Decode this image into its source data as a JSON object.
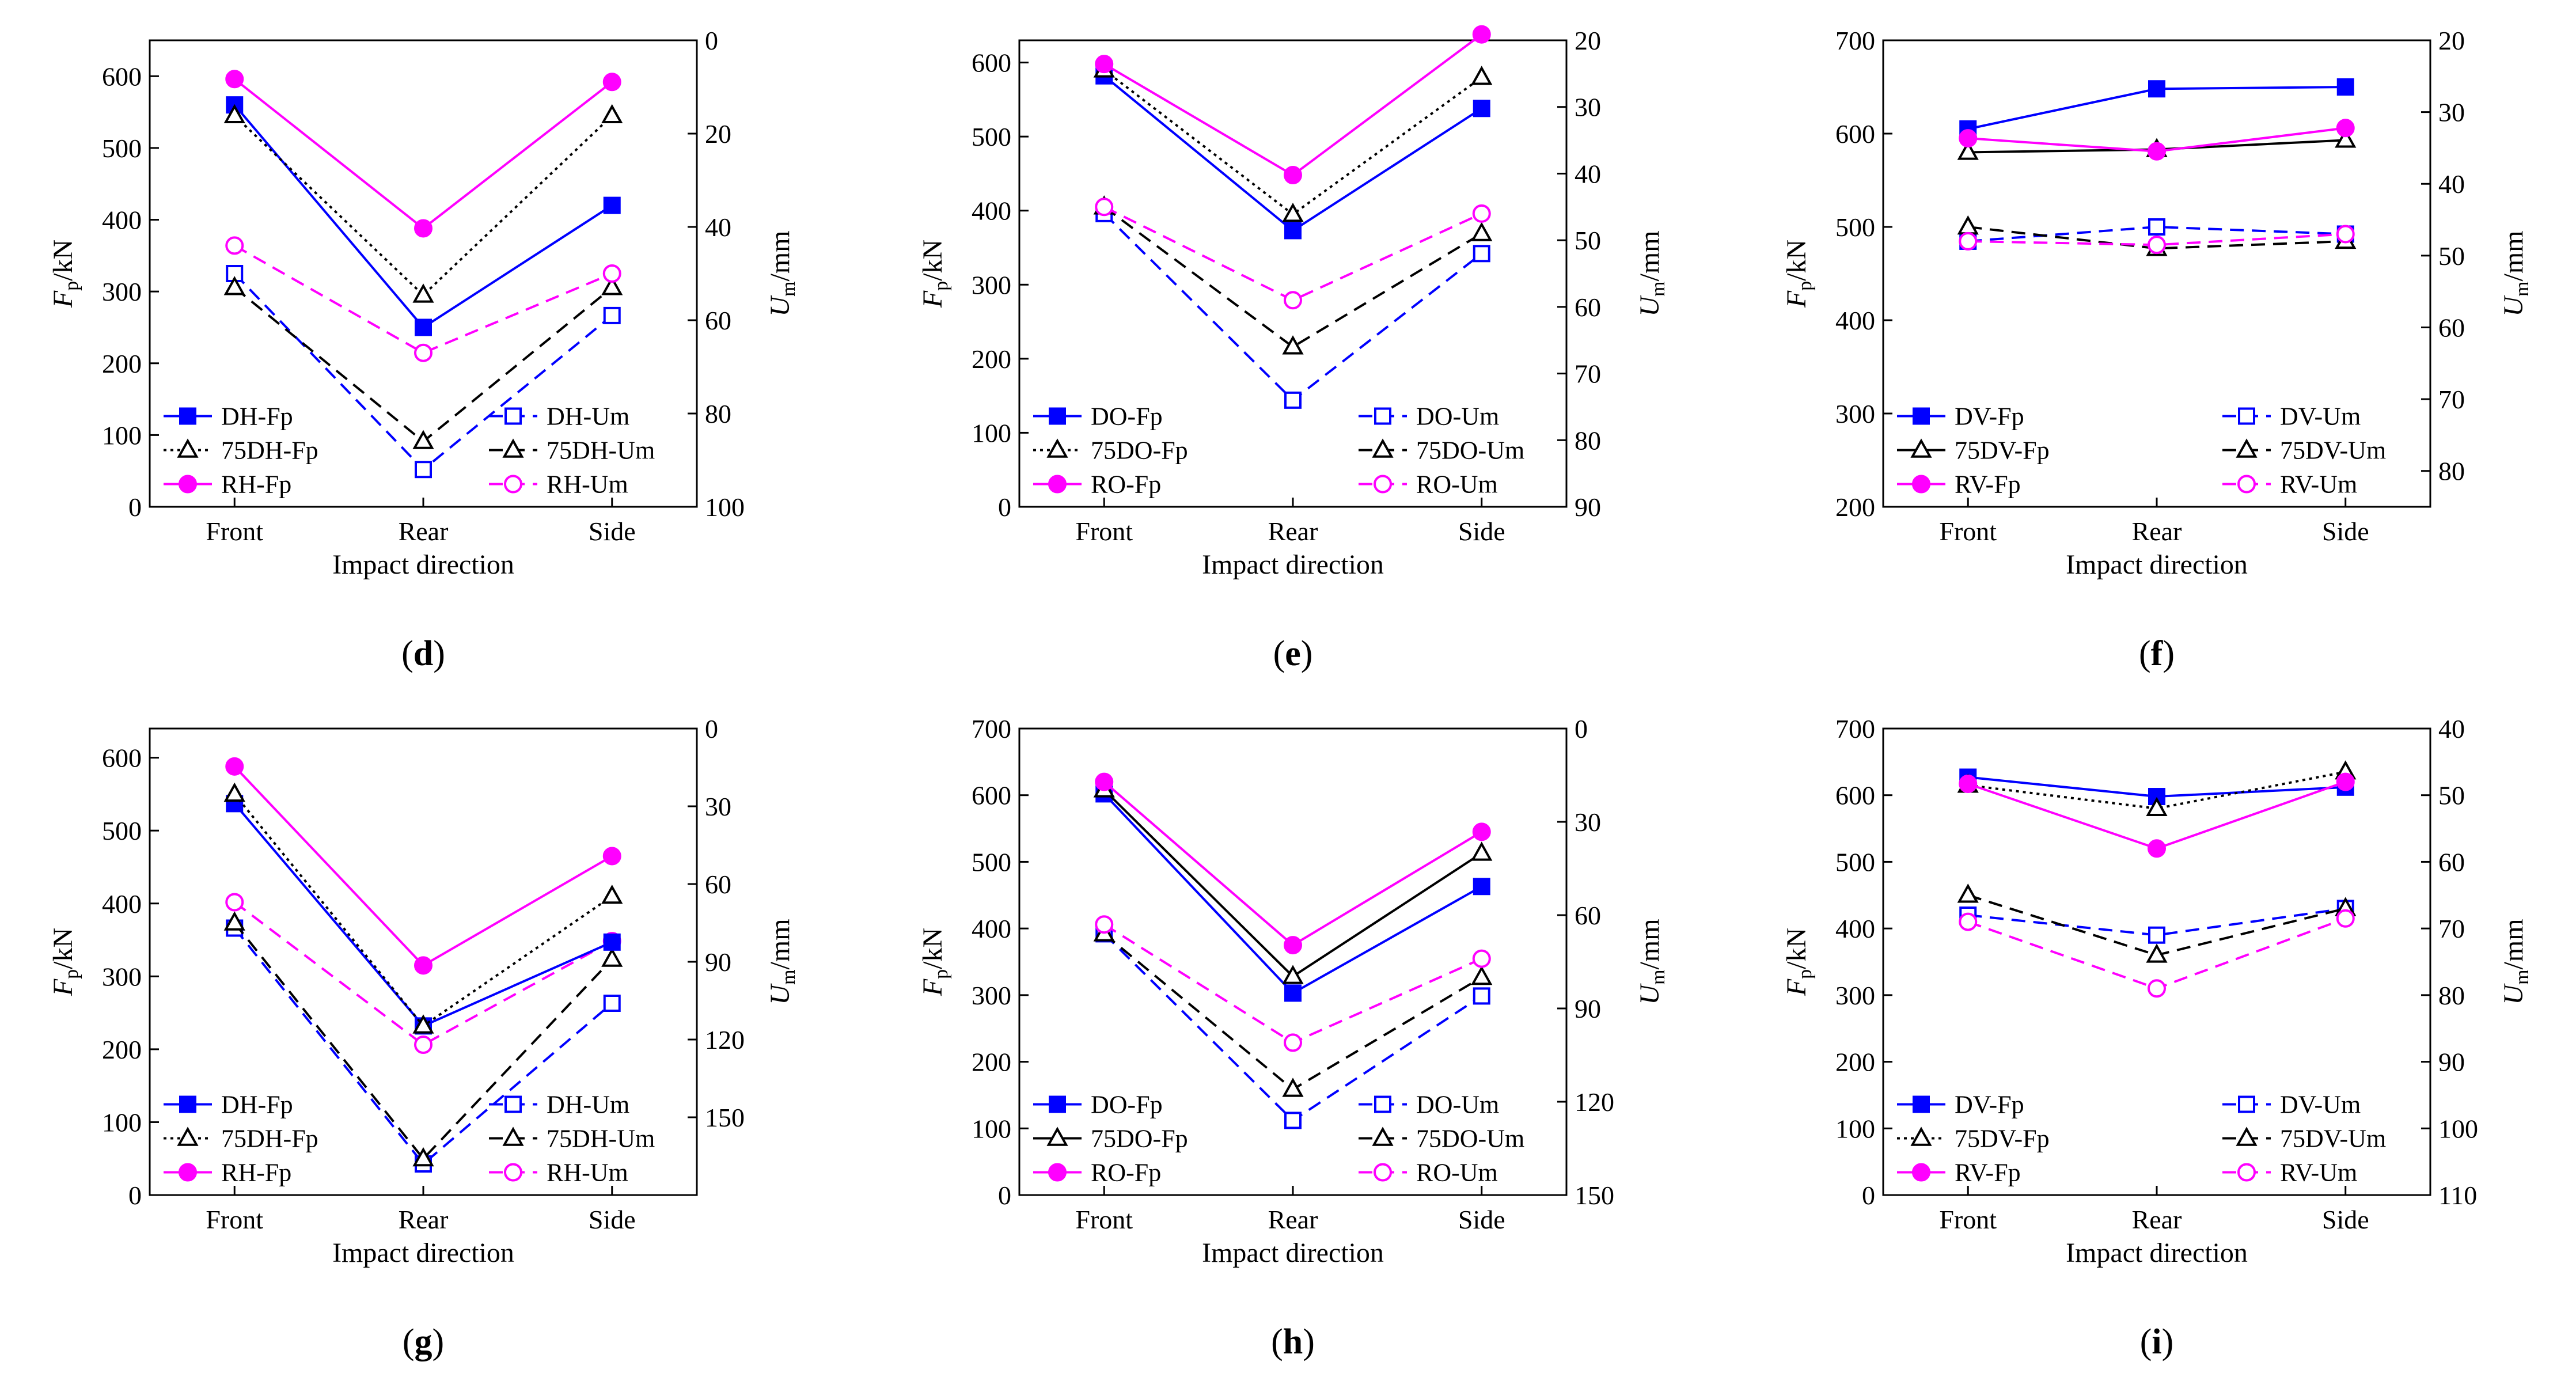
{
  "figure": {
    "panels": [
      {
        "id": "d",
        "label_letter": "d",
        "label_text": "(d)"
      },
      {
        "id": "e",
        "label_letter": "e",
        "label_text": "(e)"
      },
      {
        "id": "f",
        "label_letter": "f",
        "label_text": "(f)"
      },
      {
        "id": "g",
        "label_letter": "g",
        "label_text": "(g)"
      },
      {
        "id": "h",
        "label_letter": "h",
        "label_text": "(h)"
      },
      {
        "id": "i",
        "label_letter": "i",
        "label_text": "(i)"
      }
    ]
  },
  "chart_data": [
    {
      "panel": "d",
      "type": "line",
      "categories": [
        "Front",
        "Rear",
        "Side"
      ],
      "xlabel": "Impact direction",
      "ylabel_left": {
        "main": "F",
        "sub": "p",
        "unit": "/kN"
      },
      "ylabel_right": {
        "main": "U",
        "sub": "m",
        "unit": "/mm"
      },
      "ylim_left": [
        0,
        650
      ],
      "yticks_left": [
        0,
        100,
        200,
        300,
        400,
        500,
        600
      ],
      "ylim_right": [
        0,
        100
      ],
      "ylim_right_display": [
        100,
        0
      ],
      "yticks_right": [
        0,
        20,
        40,
        60,
        80,
        100
      ],
      "right_axis_inverted": true,
      "legend_left_placement": "lower-left",
      "legend_right_placement": "lower-right",
      "series": [
        {
          "name": "DH-Fp",
          "axis": "left",
          "color": "#0000ff",
          "marker": "square-filled",
          "line": "solid",
          "values": [
            560,
            250,
            420
          ]
        },
        {
          "name": "75DH-Fp",
          "axis": "left",
          "color": "#000000",
          "marker": "triangle-hollow",
          "line": "dotted",
          "values": [
            545,
            295,
            545
          ]
        },
        {
          "name": "RH-Fp",
          "axis": "left",
          "color": "#ff00ff",
          "marker": "circle-filled",
          "line": "solid",
          "values": [
            596,
            388,
            592
          ]
        },
        {
          "name": "DH-Um",
          "axis": "right",
          "color": "#0000ff",
          "marker": "square-hollow",
          "line": "dashed",
          "values": [
            50,
            92,
            59
          ]
        },
        {
          "name": "75DH-Um",
          "axis": "right",
          "color": "#000000",
          "marker": "triangle-hollow",
          "line": "dashed",
          "values": [
            53,
            86,
            53
          ]
        },
        {
          "name": "RH-Um",
          "axis": "right",
          "color": "#ff00ff",
          "marker": "circle-hollow",
          "line": "dashed",
          "values": [
            44,
            67,
            50
          ]
        }
      ]
    },
    {
      "panel": "e",
      "type": "line",
      "categories": [
        "Front",
        "Rear",
        "Side"
      ],
      "xlabel": "Impact direction",
      "ylabel_left": {
        "main": "F",
        "sub": "p",
        "unit": "/kN"
      },
      "ylabel_right": {
        "main": "U",
        "sub": "m",
        "unit": "/mm"
      },
      "ylim_left": [
        0,
        630
      ],
      "yticks_left": [
        0,
        100,
        200,
        300,
        400,
        500,
        600
      ],
      "ylim_right": [
        20,
        90
      ],
      "ylim_right_display": [
        90,
        20
      ],
      "yticks_right": [
        20,
        30,
        40,
        50,
        60,
        70,
        80,
        90
      ],
      "right_axis_inverted": true,
      "legend_left_placement": "lower-left",
      "legend_right_placement": "lower-right",
      "series": [
        {
          "name": "DO-Fp",
          "axis": "left",
          "color": "#0000ff",
          "marker": "square-filled",
          "line": "solid",
          "values": [
            582,
            373,
            538
          ]
        },
        {
          "name": "75DO-Fp",
          "axis": "left",
          "color": "#000000",
          "marker": "triangle-hollow",
          "line": "dotted",
          "values": [
            590,
            395,
            580
          ]
        },
        {
          "name": "RO-Fp",
          "axis": "left",
          "color": "#ff00ff",
          "marker": "circle-filled",
          "line": "solid",
          "values": [
            598,
            448,
            638
          ]
        },
        {
          "name": "DO-Um",
          "axis": "right",
          "color": "#0000ff",
          "marker": "square-hollow",
          "line": "dashed",
          "values": [
            46,
            74,
            52
          ]
        },
        {
          "name": "75DO-Um",
          "axis": "right",
          "color": "#000000",
          "marker": "triangle-hollow",
          "line": "dashed",
          "values": [
            45,
            66,
            49
          ]
        },
        {
          "name": "RO-Um",
          "axis": "right",
          "color": "#ff00ff",
          "marker": "circle-hollow",
          "line": "dashed",
          "values": [
            45,
            59,
            46
          ]
        }
      ]
    },
    {
      "panel": "f",
      "type": "line",
      "categories": [
        "Front",
        "Rear",
        "Side"
      ],
      "xlabel": "Impact direction",
      "ylabel_left": {
        "main": "F",
        "sub": "p",
        "unit": "/kN"
      },
      "ylabel_right": {
        "main": "U",
        "sub": "m",
        "unit": "/mm"
      },
      "ylim_left": [
        200,
        700
      ],
      "yticks_left": [
        200,
        300,
        400,
        500,
        600,
        700
      ],
      "ylim_right": [
        20,
        85
      ],
      "ylim_right_display": [
        85,
        20
      ],
      "yticks_right": [
        20,
        30,
        40,
        50,
        60,
        70,
        80
      ],
      "right_axis_inverted": true,
      "legend_left_placement": "lower-left",
      "legend_right_placement": "lower-right",
      "series": [
        {
          "name": "DV-Fp",
          "axis": "left",
          "color": "#0000ff",
          "marker": "square-filled",
          "line": "solid",
          "values": [
            605,
            648,
            650
          ]
        },
        {
          "name": "75DV-Fp",
          "axis": "left",
          "color": "#000000",
          "marker": "triangle-hollow",
          "line": "solid",
          "values": [
            580,
            583,
            593
          ]
        },
        {
          "name": "RV-Fp",
          "axis": "left",
          "color": "#ff00ff",
          "marker": "circle-filled",
          "line": "solid",
          "values": [
            595,
            581,
            606
          ]
        },
        {
          "name": "DV-Um",
          "axis": "right",
          "color": "#0000ff",
          "marker": "square-hollow",
          "line": "dashed",
          "values": [
            48,
            46,
            47
          ]
        },
        {
          "name": "75DV-Um",
          "axis": "right",
          "color": "#000000",
          "marker": "triangle-hollow",
          "line": "dashed",
          "values": [
            46,
            49,
            48
          ]
        },
        {
          "name": "RV-Um",
          "axis": "right",
          "color": "#ff00ff",
          "marker": "circle-hollow",
          "line": "dashed",
          "values": [
            48,
            48.5,
            47
          ]
        }
      ]
    },
    {
      "panel": "g",
      "type": "line",
      "categories": [
        "Front",
        "Rear",
        "Side"
      ],
      "xlabel": "Impact direction",
      "ylabel_left": {
        "main": "F",
        "sub": "p",
        "unit": "/kN"
      },
      "ylabel_right": {
        "main": "U",
        "sub": "m",
        "unit": "/mm"
      },
      "ylim_left": [
        0,
        640
      ],
      "yticks_left": [
        0,
        100,
        200,
        300,
        400,
        500,
        600
      ],
      "ylim_right": [
        0,
        180
      ],
      "ylim_right_display": [
        180,
        0
      ],
      "yticks_right": [
        0,
        30,
        60,
        90,
        120,
        150
      ],
      "right_axis_inverted": true,
      "legend_left_placement": "lower-left",
      "legend_right_placement": "lower-right",
      "series": [
        {
          "name": "DH-Fp",
          "axis": "left",
          "color": "#0000ff",
          "marker": "square-filled",
          "line": "solid",
          "values": [
            537,
            232,
            347
          ]
        },
        {
          "name": "75DH-Fp",
          "axis": "left",
          "color": "#000000",
          "marker": "triangle-hollow",
          "line": "dotted",
          "values": [
            550,
            232,
            410
          ]
        },
        {
          "name": "RH-Fp",
          "axis": "left",
          "color": "#ff00ff",
          "marker": "circle-filled",
          "line": "solid",
          "values": [
            588,
            315,
            465
          ]
        },
        {
          "name": "DH-Um",
          "axis": "right",
          "color": "#0000ff",
          "marker": "square-hollow",
          "line": "dashed",
          "values": [
            77,
            168,
            106
          ]
        },
        {
          "name": "75DH-Um",
          "axis": "right",
          "color": "#000000",
          "marker": "triangle-hollow",
          "line": "dashed",
          "values": [
            75,
            166,
            89
          ]
        },
        {
          "name": "RH-Um",
          "axis": "right",
          "color": "#ff00ff",
          "marker": "circle-hollow",
          "line": "dashed",
          "values": [
            67,
            122,
            82
          ]
        }
      ]
    },
    {
      "panel": "h",
      "type": "line",
      "categories": [
        "Front",
        "Rear",
        "Side"
      ],
      "xlabel": "Impact direction",
      "ylabel_left": {
        "main": "F",
        "sub": "p",
        "unit": "/kN"
      },
      "ylabel_right": {
        "main": "U",
        "sub": "m",
        "unit": "/mm"
      },
      "ylim_left": [
        0,
        700
      ],
      "yticks_left": [
        0,
        100,
        200,
        300,
        400,
        500,
        600,
        700
      ],
      "ylim_right": [
        0,
        150
      ],
      "ylim_right_display": [
        150,
        0
      ],
      "yticks_right": [
        0,
        30,
        60,
        90,
        120,
        150
      ],
      "right_axis_inverted": true,
      "legend_left_placement": "lower-left",
      "legend_right_placement": "lower-right",
      "series": [
        {
          "name": "DO-Fp",
          "axis": "left",
          "color": "#0000ff",
          "marker": "square-filled",
          "line": "solid",
          "values": [
            602,
            303,
            463
          ]
        },
        {
          "name": "75DO-Fp",
          "axis": "left",
          "color": "#000000",
          "marker": "triangle-hollow",
          "line": "solid",
          "values": [
            608,
            328,
            513
          ]
        },
        {
          "name": "RO-Fp",
          "axis": "left",
          "color": "#ff00ff",
          "marker": "circle-filled",
          "line": "solid",
          "values": [
            620,
            375,
            545
          ]
        },
        {
          "name": "DO-Um",
          "axis": "right",
          "color": "#0000ff",
          "marker": "square-hollow",
          "line": "dashed",
          "values": [
            66,
            126,
            86
          ]
        },
        {
          "name": "75DO-Um",
          "axis": "right",
          "color": "#000000",
          "marker": "triangle-hollow",
          "line": "dashed",
          "values": [
            66,
            116,
            80
          ]
        },
        {
          "name": "RO-Um",
          "axis": "right",
          "color": "#ff00ff",
          "marker": "circle-hollow",
          "line": "dashed",
          "values": [
            63,
            101,
            74
          ]
        }
      ]
    },
    {
      "panel": "i",
      "type": "line",
      "categories": [
        "Front",
        "Rear",
        "Side"
      ],
      "xlabel": "Impact direction",
      "ylabel_left": {
        "main": "F",
        "sub": "p",
        "unit": "/kN"
      },
      "ylabel_right": {
        "main": "U",
        "sub": "m",
        "unit": "/mm"
      },
      "ylim_left": [
        0,
        700
      ],
      "yticks_left": [
        0,
        100,
        200,
        300,
        400,
        500,
        600,
        700
      ],
      "ylim_right": [
        40,
        110
      ],
      "ylim_right_display": [
        110,
        40
      ],
      "yticks_right": [
        40,
        50,
        60,
        70,
        80,
        90,
        100,
        110
      ],
      "right_axis_inverted": true,
      "legend_left_placement": "lower-left",
      "legend_right_placement": "lower-right",
      "series": [
        {
          "name": "DV-Fp",
          "axis": "left",
          "color": "#0000ff",
          "marker": "square-filled",
          "line": "solid",
          "values": [
            627,
            598,
            612
          ]
        },
        {
          "name": "75DV-Fp",
          "axis": "left",
          "color": "#000000",
          "marker": "triangle-hollow",
          "line": "dotted",
          "values": [
            615,
            580,
            635
          ]
        },
        {
          "name": "RV-Fp",
          "axis": "left",
          "color": "#ff00ff",
          "marker": "circle-filled",
          "line": "solid",
          "values": [
            617,
            520,
            620
          ]
        },
        {
          "name": "DV-Um",
          "axis": "right",
          "color": "#0000ff",
          "marker": "square-hollow",
          "line": "dashed",
          "values": [
            68,
            71,
            67
          ]
        },
        {
          "name": "75DV-Um",
          "axis": "right",
          "color": "#000000",
          "marker": "triangle-hollow",
          "line": "dashed",
          "values": [
            65,
            74,
            67
          ]
        },
        {
          "name": "RV-Um",
          "axis": "right",
          "color": "#ff00ff",
          "marker": "circle-hollow",
          "line": "dashed",
          "values": [
            69,
            79,
            68.5
          ]
        }
      ]
    }
  ]
}
